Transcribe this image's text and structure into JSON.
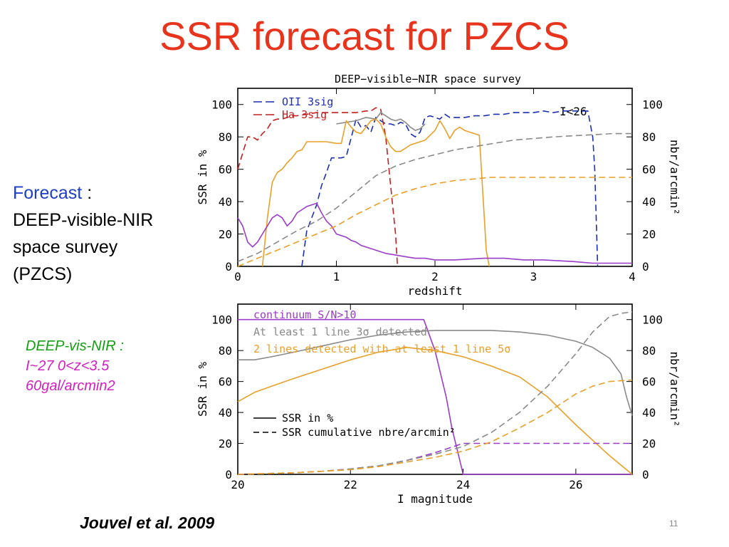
{
  "slide": {
    "title": "SSR forecast for PZCS",
    "forecast_keyword": "Forecast",
    "forecast_colon": " :",
    "forecast_line2": "DEEP-visible-NIR",
    "forecast_line3": "space survey",
    "forecast_line4": "(PZCS)",
    "deep_line1": "DEEP-vis-NIR :",
    "deep_line2": "I~27  0<z<3.5",
    "deep_line3": "60gal/arcmin2",
    "citation": "Jouvel et al. 2009",
    "slide_number": "11"
  },
  "chart_data": [
    {
      "type": "line",
      "title": "DEEP−visible−NIR space survey",
      "xlabel": "redshift",
      "ylabel": "SSR in %",
      "y2label": "nbr/arcmin²",
      "annotation": "I<26",
      "xlim": [
        0,
        4
      ],
      "ylim": [
        0,
        110
      ],
      "xticks": [
        0,
        1,
        2,
        3,
        4
      ],
      "yticks": [
        0,
        20,
        40,
        60,
        80,
        100
      ],
      "legend_placement": "top-left",
      "series": [
        {
          "name": "OII 3sig",
          "color": "#1c2fb0",
          "dash": "dashed",
          "x": [
            0.65,
            0.7,
            0.8,
            0.85,
            0.9,
            0.95,
            1.0,
            1.05,
            1.1,
            1.2,
            1.25,
            1.3,
            1.35,
            1.4,
            1.45,
            1.5,
            1.55,
            1.6,
            1.65,
            1.7,
            1.75,
            1.8,
            1.85,
            1.9,
            1.95,
            2.0,
            2.05,
            2.1,
            2.15,
            2.2,
            2.3,
            2.4,
            2.5,
            2.6,
            2.7,
            2.8,
            2.9,
            3.0,
            3.1,
            3.2,
            3.3,
            3.4,
            3.45,
            3.5,
            3.55,
            3.6,
            3.62,
            3.65
          ],
          "y": [
            0,
            22,
            38,
            50,
            58,
            67,
            67,
            67,
            68,
            91,
            86,
            87,
            83,
            92,
            90,
            88,
            88,
            87,
            89,
            88,
            82,
            80,
            83,
            92,
            93,
            92,
            91,
            94,
            92,
            92,
            92,
            93,
            93,
            94,
            94,
            95,
            95,
            95,
            96,
            95,
            96,
            96,
            96,
            96,
            96,
            80,
            60,
            0
          ]
        },
        {
          "name": "Ha 3sig",
          "color": "#c02020",
          "dash": "dashed",
          "x": [
            0,
            0.05,
            0.1,
            0.15,
            0.2,
            0.25,
            0.3,
            0.35,
            0.4,
            0.45,
            0.5,
            0.55,
            0.6,
            0.7,
            0.8,
            0.9,
            1.0,
            1.1,
            1.2,
            1.3,
            1.35,
            1.4,
            1.45,
            1.5,
            1.55,
            1.6,
            1.62
          ],
          "y": [
            60,
            70,
            80,
            80,
            78,
            82,
            85,
            90,
            91,
            91,
            92,
            93,
            93,
            94,
            95,
            95,
            95,
            95,
            95,
            96,
            96,
            98,
            97,
            80,
            50,
            20,
            0
          ]
        },
        {
          "name": "",
          "color": "#8a8a8a",
          "dash": "solid",
          "x": [
            1.0,
            1.1,
            1.2,
            1.3,
            1.4,
            1.45,
            1.5,
            1.55,
            1.6,
            1.65,
            1.7,
            1.75,
            1.8,
            1.85,
            1.9
          ],
          "y": [
            88,
            89,
            90,
            92,
            91,
            95,
            93,
            91,
            90,
            91,
            89,
            86,
            84,
            85,
            88
          ]
        },
        {
          "name": "",
          "color": "#e8a028",
          "dash": "solid",
          "x": [
            0.25,
            0.3,
            0.35,
            0.4,
            0.45,
            0.5,
            0.55,
            0.6,
            0.65,
            0.7,
            0.8,
            0.9,
            1.0,
            1.05,
            1.1,
            1.15,
            1.2,
            1.25,
            1.3,
            1.35,
            1.4,
            1.45,
            1.5,
            1.55,
            1.6,
            1.65,
            1.7,
            1.75,
            1.8,
            1.85,
            1.9,
            1.95,
            2.0,
            2.05,
            2.1,
            2.15,
            2.2,
            2.25,
            2.3,
            2.35,
            2.4,
            2.45,
            2.5,
            2.52,
            2.55
          ],
          "y": [
            0,
            30,
            52,
            58,
            60,
            64,
            67,
            71,
            72,
            77,
            77,
            77,
            76,
            76,
            90,
            86,
            83,
            82,
            86,
            90,
            91,
            88,
            80,
            74,
            71,
            71,
            73,
            75,
            76,
            77,
            78,
            81,
            84,
            90,
            85,
            79,
            84,
            86,
            84,
            83,
            82,
            81,
            30,
            10,
            0
          ]
        },
        {
          "name": "",
          "color": "#9a3cc8",
          "dash": "solid",
          "x": [
            0,
            0.05,
            0.1,
            0.15,
            0.2,
            0.25,
            0.3,
            0.35,
            0.4,
            0.45,
            0.5,
            0.55,
            0.6,
            0.65,
            0.7,
            0.75,
            0.8,
            0.85,
            0.9,
            0.95,
            1.0,
            1.05,
            1.1,
            1.15,
            1.2,
            1.25,
            1.3,
            1.35,
            1.4,
            1.45,
            1.5,
            1.6,
            1.7,
            1.8,
            1.9,
            2.0,
            2.2,
            2.5,
            2.7,
            2.9,
            3.1,
            3.4,
            3.6,
            3.8,
            4.0
          ],
          "y": [
            30,
            25,
            15,
            12,
            15,
            20,
            25,
            30,
            32,
            30,
            25,
            28,
            33,
            35,
            37,
            38,
            39,
            33,
            28,
            25,
            20,
            19,
            18,
            16,
            15,
            13,
            12,
            11,
            10,
            9,
            8,
            7,
            6,
            5,
            5,
            4,
            4,
            5,
            5,
            4,
            4,
            3,
            2,
            2,
            2
          ]
        },
        {
          "name": "",
          "color": "#8a8a8a",
          "dash": "dashed",
          "x": [
            0,
            0.2,
            0.4,
            0.6,
            0.8,
            1.0,
            1.2,
            1.4,
            1.6,
            1.8,
            2.0,
            2.2,
            2.5,
            2.8,
            3.0,
            3.2,
            3.5,
            3.8,
            4.0
          ],
          "y": [
            3,
            8,
            15,
            22,
            28,
            36,
            46,
            56,
            62,
            66,
            69,
            72,
            75,
            78,
            79,
            80,
            81,
            82,
            82
          ]
        },
        {
          "name": "",
          "color": "#e8a028",
          "dash": "dashed",
          "x": [
            0,
            0.2,
            0.4,
            0.6,
            0.8,
            1.0,
            1.2,
            1.4,
            1.6,
            1.8,
            2.0,
            2.2,
            2.4,
            2.55,
            3.0,
            4.0
          ],
          "y": [
            0,
            5,
            10,
            15,
            20,
            25,
            32,
            38,
            44,
            48,
            51,
            53,
            54,
            55,
            55,
            55
          ]
        }
      ]
    },
    {
      "type": "line",
      "xlabel": "I magnitude",
      "ylabel": "SSR in %",
      "y2label": "nbr/arcmin²",
      "xlim": [
        20,
        27
      ],
      "ylim": [
        0,
        110
      ],
      "xticks": [
        20,
        22,
        24,
        26
      ],
      "yticks": [
        0,
        20,
        40,
        60,
        80,
        100
      ],
      "legend_placement": "top-left",
      "legend": [
        {
          "name": "continuum S/N>10",
          "color": "#9a3cc8"
        },
        {
          "name": "At least 1 line 3σ detected",
          "color": "#8a8a8a"
        },
        {
          "name": "2 lines detected with at least 1 line 5σ",
          "color": "#e8a028"
        }
      ],
      "style_legend": [
        {
          "name": "SSR in %",
          "dash": "solid"
        },
        {
          "name": "SSR cumulative nbre/arcmin²",
          "dash": "dashed"
        }
      ],
      "series": [
        {
          "name": "continuum S/N>10",
          "color": "#9a3cc8",
          "dash": "solid",
          "x": [
            20,
            21,
            22,
            23,
            23.3,
            23.5,
            23.7,
            23.8,
            23.9,
            24.0,
            24.1,
            27
          ],
          "y": [
            100,
            100,
            100,
            100,
            100,
            80,
            50,
            30,
            15,
            0,
            0,
            0
          ]
        },
        {
          "name": "At least 1 line 3σ detected",
          "color": "#8a8a8a",
          "dash": "solid",
          "x": [
            20,
            20.3,
            20.6,
            21,
            21.5,
            22,
            22.5,
            23,
            23.5,
            24,
            24.5,
            25,
            25.5,
            26,
            26.3,
            26.6,
            26.8,
            26.9,
            27
          ],
          "y": [
            74,
            74,
            76,
            79,
            83,
            87,
            90,
            92,
            93,
            93,
            93,
            92,
            90,
            86,
            82,
            75,
            65,
            50,
            38
          ]
        },
        {
          "name": "2 lines detected with at least 1 line 5σ",
          "color": "#e8a028",
          "dash": "solid",
          "x": [
            20,
            20.3,
            20.6,
            21,
            21.5,
            22,
            22.5,
            23,
            23.5,
            24,
            24.5,
            25,
            25.5,
            26,
            26.3,
            26.6,
            26.8,
            27
          ],
          "y": [
            47,
            53,
            57,
            62,
            68,
            74,
            79,
            82,
            80,
            76,
            70,
            63,
            50,
            32,
            22,
            12,
            6,
            0
          ]
        },
        {
          "name": "",
          "color": "#9a3cc8",
          "dash": "dashed",
          "x": [
            20,
            20.5,
            21,
            21.5,
            22,
            22.5,
            23,
            23.5,
            24,
            27
          ],
          "y": [
            0,
            0.5,
            1,
            2,
            3.5,
            5.5,
            9,
            14,
            20,
            20
          ]
        },
        {
          "name": "",
          "color": "#8a8a8a",
          "dash": "dashed",
          "x": [
            20,
            20.5,
            21,
            21.5,
            22,
            22.5,
            23,
            23.5,
            24,
            24.5,
            25,
            25.5,
            26,
            26.3,
            26.6,
            26.8,
            27
          ],
          "y": [
            0,
            0.5,
            1,
            2,
            3.5,
            5.5,
            9,
            13,
            18,
            27,
            40,
            57,
            78,
            92,
            102,
            104,
            105
          ]
        },
        {
          "name": "",
          "color": "#e8a028",
          "dash": "dashed",
          "x": [
            20,
            20.5,
            21,
            21.5,
            22,
            22.5,
            23,
            23.5,
            24,
            24.5,
            25,
            25.5,
            26,
            26.3,
            26.6,
            27
          ],
          "y": [
            0,
            0.5,
            1,
            2,
            3,
            5,
            8,
            11,
            15,
            21,
            30,
            40,
            52,
            57,
            60,
            61
          ]
        }
      ]
    }
  ]
}
